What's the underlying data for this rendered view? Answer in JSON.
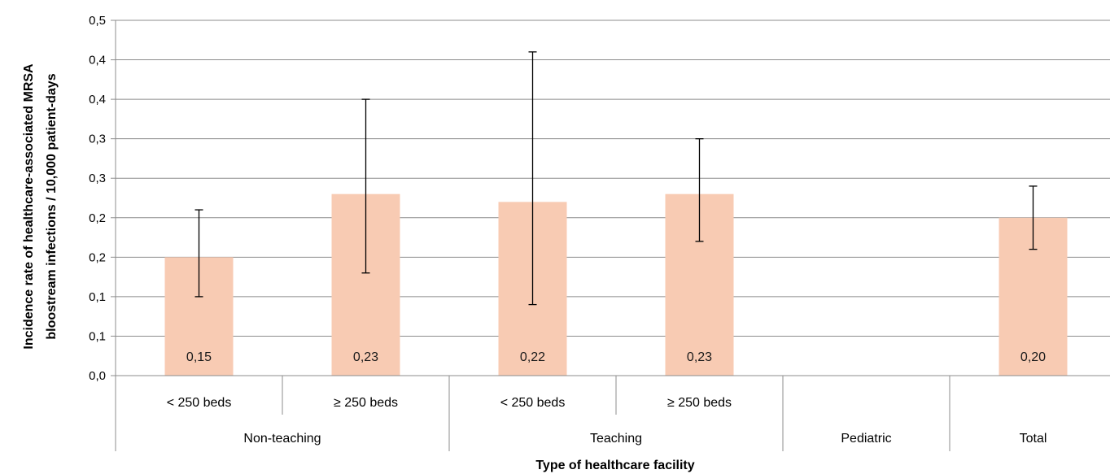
{
  "chart_data": {
    "type": "bar",
    "xlabel": "Type of healthcare facility",
    "ylabel_lines": [
      "Incidence rate of healthcare-associated MRSA",
      "bloostream infections / 10,000  patient-days"
    ],
    "ylim": [
      0,
      0.45
    ],
    "y_tick_values": [
      0,
      0.05,
      0.1,
      0.15,
      0.2,
      0.25,
      0.3,
      0.35,
      0.4,
      0.45
    ],
    "y_tick_labels": [
      "0,0",
      "0,1",
      "0,1",
      "0,2",
      "0,2",
      "0,3",
      "0,3",
      "0,4",
      "0,4",
      "0,5"
    ],
    "grid": true,
    "bar_color": "#f8cbb3",
    "categories": [
      {
        "label": "< 250 beds",
        "group": "Non-teaching"
      },
      {
        "label": "≥ 250 beds",
        "group": "Non-teaching"
      },
      {
        "label": "< 250 beds",
        "group": "Teaching"
      },
      {
        "label": "≥ 250 beds",
        "group": "Teaching"
      },
      {
        "label": "",
        "group": "Pediatric"
      },
      {
        "label": "",
        "group": "Total"
      }
    ],
    "groups": [
      {
        "label": "Non-teaching",
        "span": 2
      },
      {
        "label": "Teaching",
        "span": 2
      },
      {
        "label": "Pediatric",
        "span": 1
      },
      {
        "label": "Total",
        "span": 1
      }
    ],
    "values": [
      0.15,
      0.23,
      0.22,
      0.23,
      null,
      0.2
    ],
    "value_labels": [
      "0,15",
      "0,23",
      "0,22",
      "0,23",
      "",
      "0,20"
    ],
    "error_low": [
      0.1,
      0.13,
      0.09,
      0.17,
      null,
      0.16
    ],
    "error_high": [
      0.21,
      0.35,
      0.41,
      0.3,
      null,
      0.24
    ]
  }
}
